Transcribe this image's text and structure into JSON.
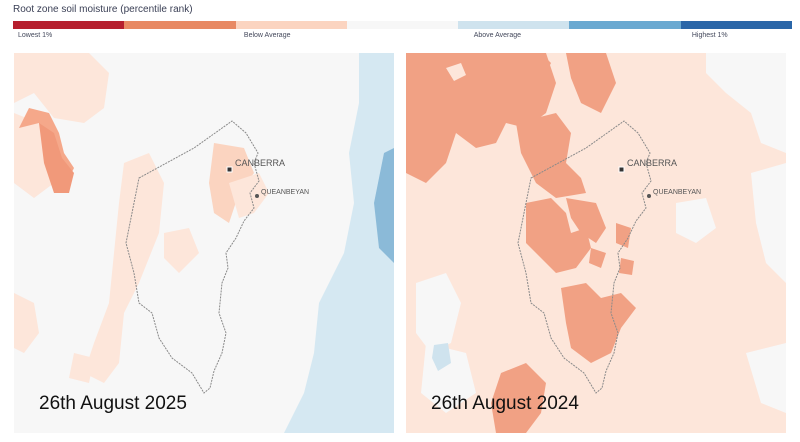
{
  "legend": {
    "title": "Root zone soil moisture (percentile rank)",
    "colors": [
      "#b61f2e",
      "#e88963",
      "#fbd4c0",
      "#f7f7f7",
      "#cfe3ee",
      "#6aa9d1",
      "#2a66a8"
    ],
    "labels": [
      {
        "text": "Lowest 1%",
        "pos": 0.0
      },
      {
        "text": "Below Average",
        "pos": 0.29
      },
      {
        "text": "Above Average",
        "pos": 0.585
      },
      {
        "text": "Highest 1%",
        "pos": 0.865
      }
    ]
  },
  "panels": [
    {
      "date": "26th August 2025"
    },
    {
      "date": "26th August 2024"
    }
  ],
  "places": {
    "canberra": "CANBERRA",
    "queanbeyan": "QUEANBEYAN"
  }
}
